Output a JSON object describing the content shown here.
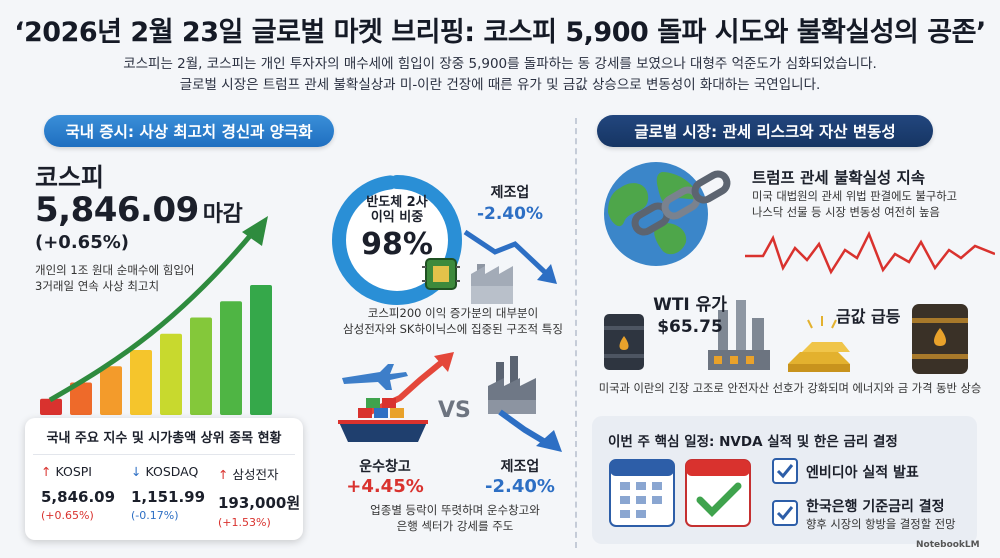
{
  "header": {
    "title": "‘2026년 2월 23일 글로벌 마켓 브리핑: 코스피 5,900 돌파 시도와 불확실성의 공존’",
    "subtitle_line1": "코스피는 2월, 코스피는 개인 투자자의 매수세에 힘입이 장중 5,900를 돌파하는 동 강세를 보였으나 대형주 억준도가 심화되었습니다.",
    "subtitle_line2": "글로벌 시장은 트럼프 관세 불확실상과 미-이란 건장에 때른 유가 및 금값 상승으로 변동성이 화대하는 국연입니다."
  },
  "domestic": {
    "section_label": "국내 증시: 사상 최고치 경신과 양극화",
    "kospi_label": "코스피",
    "kospi_value": "5,846.09",
    "kospi_unit": "마감",
    "kospi_change": "(+0.65%)",
    "kospi_desc_line1": "개인의 1조 원대 순매수에 힘입어",
    "kospi_desc_line2": "3거래일 연속 사상 최고치",
    "bar_chart": {
      "values": [
        1,
        2,
        3,
        4,
        5,
        6,
        7,
        8
      ],
      "colors": [
        "#d9322e",
        "#ee6a2a",
        "#f39b2b",
        "#f5c52c",
        "#c8d92e",
        "#84c83a",
        "#4fb544",
        "#35a84a"
      ]
    },
    "table": {
      "title": "국내 주요 지수 및 시가총액 상위 종목 현황",
      "items": [
        {
          "arrow": "↑",
          "name": "KOSPI",
          "value": "5,846.09",
          "change": "(+0.65%)",
          "dir": "up"
        },
        {
          "arrow": "↓",
          "name": "KOSDAQ",
          "value": "1,151.99",
          "change": "(-0.17%)",
          "dir": "down"
        },
        {
          "arrow": "↑",
          "name": "삼성전자",
          "value": "193,000원",
          "change": "(+1.53%)",
          "dir": "up"
        }
      ]
    },
    "semiconductor": {
      "label_line1": "반도체 2사",
      "label_line2": "이익 비중",
      "share_value": "98%",
      "share_fraction": 0.98,
      "desc_line1": "코스피200 이익 증가분의 대부분이",
      "desc_line2": "삼성전자와 SK하이닉스에 집중된 구조적 특징"
    },
    "manufacturing_top": {
      "name": "제조업",
      "value": "-2.40%"
    },
    "vs_label": "VS",
    "shipping": {
      "name": "운수창고",
      "value": "+4.45%"
    },
    "manufacturing_bottom": {
      "name": "제조업",
      "value": "-2.40%"
    },
    "sector_desc_line1": "업종별 등락이 뚜렷하며 운수창고와",
    "sector_desc_line2": "은행 섹터가 강세를 주도"
  },
  "global": {
    "section_label": "글로벌 시장: 관세 리스크와 자산 변동성",
    "tariff_title": "트럼프 관세 불확실성 지속",
    "tariff_desc_line1": "미국 대법원의 관세 위법 판결에도 불구하고",
    "tariff_desc_line2": "나스닥 선물 등 시장 변동성 여전히 높음",
    "wti_label": "WTI 유가",
    "wti_value": "$65.75",
    "gold_label": "금값 급등",
    "energy_desc": "미국과 이란의 긴장 고조로 안전자산 선호가 강화되며 에너지와 금 가격 동반 상승",
    "schedule": {
      "title": "이번 주 핵심 일정: NVDA 실적 및 한은 금리 결정",
      "item1": "엔비디아 실적 발표",
      "item2": "한국은행 기준금리 결정",
      "item2_sub": "향후 시장의 항방을 결정할 전망"
    }
  },
  "brand": "NotebookLM",
  "colors": {
    "accent_blue": "#1f6fc0",
    "navy": "#163563",
    "up_red": "#d9322e",
    "down_blue": "#2d6fc4"
  }
}
